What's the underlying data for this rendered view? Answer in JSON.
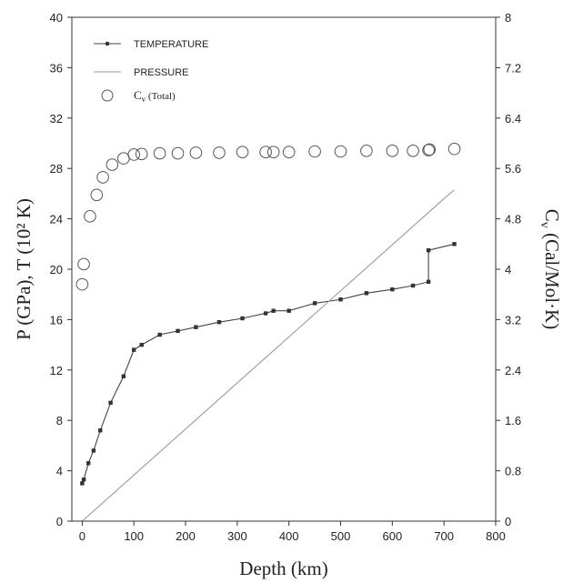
{
  "chart_data": {
    "type": "line",
    "x_axis": {
      "label": "Depth (km)",
      "range": [
        -20,
        800
      ],
      "ticks": [
        0,
        100,
        200,
        300,
        400,
        500,
        600,
        700,
        800
      ]
    },
    "y_left": {
      "label": "P (GPa), T (10² K)",
      "range": [
        0,
        40
      ],
      "ticks": [
        0,
        4,
        8,
        12,
        16,
        20,
        24,
        28,
        32,
        36,
        40
      ]
    },
    "y_right": {
      "label_main": "C",
      "label_sub": "v",
      "label_rest": " (Cal/Mol·K)",
      "range": [
        0,
        8
      ],
      "ticks": [
        "0",
        "0.8",
        "1.6",
        "2.4",
        "3.2",
        "4",
        "4.8",
        "5.6",
        "6.4",
        "7.2",
        "8"
      ]
    },
    "legend_position": "top-left",
    "series": [
      {
        "name": "TEMPERATURE",
        "axis": "left",
        "style": "line-with-square-markers",
        "color": "#444444",
        "points": [
          [
            0,
            3.0
          ],
          [
            3,
            3.3
          ],
          [
            12,
            4.6
          ],
          [
            22,
            5.6
          ],
          [
            35,
            7.2
          ],
          [
            55,
            9.4
          ],
          [
            80,
            11.5
          ],
          [
            100,
            13.6
          ],
          [
            115,
            14.0
          ],
          [
            150,
            14.8
          ],
          [
            185,
            15.1
          ],
          [
            220,
            15.4
          ],
          [
            265,
            15.8
          ],
          [
            310,
            16.1
          ],
          [
            355,
            16.5
          ],
          [
            370,
            16.7
          ],
          [
            400,
            16.7
          ],
          [
            450,
            17.3
          ],
          [
            500,
            17.6
          ],
          [
            550,
            18.1
          ],
          [
            600,
            18.4
          ],
          [
            640,
            18.7
          ],
          [
            670,
            19.0
          ],
          [
            670,
            21.5
          ],
          [
            720,
            22.0
          ]
        ]
      },
      {
        "name": "PRESSURE",
        "axis": "left",
        "style": "line",
        "color": "#9a9a9a",
        "points": [
          [
            0,
            0
          ],
          [
            700,
            25.6
          ],
          [
            720,
            26.3
          ]
        ]
      },
      {
        "name_main": "C",
        "name_sub": "v",
        "name_rest": " (Total)",
        "axis": "right",
        "style": "open-circles",
        "color": "#555555",
        "points": [
          [
            0,
            3.76
          ],
          [
            3,
            4.08
          ],
          [
            15,
            4.84
          ],
          [
            28,
            5.18
          ],
          [
            40,
            5.46
          ],
          [
            58,
            5.66
          ],
          [
            80,
            5.76
          ],
          [
            100,
            5.82
          ],
          [
            115,
            5.83
          ],
          [
            150,
            5.84
          ],
          [
            185,
            5.84
          ],
          [
            220,
            5.85
          ],
          [
            265,
            5.85
          ],
          [
            310,
            5.86
          ],
          [
            355,
            5.86
          ],
          [
            370,
            5.86
          ],
          [
            400,
            5.86
          ],
          [
            450,
            5.87
          ],
          [
            500,
            5.87
          ],
          [
            550,
            5.88
          ],
          [
            600,
            5.88
          ],
          [
            640,
            5.88
          ],
          [
            670,
            5.89
          ],
          [
            672,
            5.9
          ],
          [
            720,
            5.91
          ]
        ]
      }
    ]
  }
}
